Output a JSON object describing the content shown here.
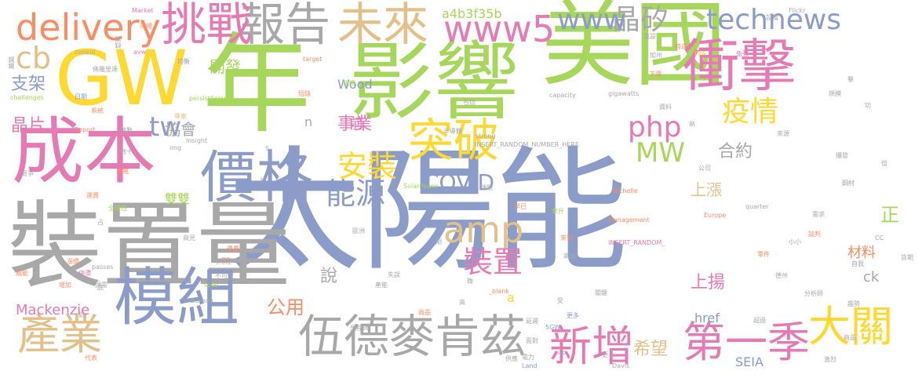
{
  "palette": {
    "gray": "#a8a8a8",
    "blue": "#8a9cc7",
    "green": "#a6d65a",
    "pink": "#e67ab4",
    "orange": "#fb8c64",
    "yellow": "#ffd92f",
    "tan": "#e2c08a"
  },
  "words": [
    "太陽能",
    "美國",
    "年",
    "裝置量",
    "影響",
    "GW",
    "成本",
    "衝擊",
    "模組",
    "價格",
    "伍德麥肯茲",
    "報告",
    "挑戰",
    "突破",
    "未來",
    "delivery",
    "www5",
    "產業",
    "第一季",
    "新增",
    "大關",
    "晶矽",
    "technews",
    "www",
    "能源",
    "amp",
    "php",
    "疫情",
    "MW",
    "安裝",
    "裝置",
    "COVID",
    "事業",
    "cb",
    "tw",
    "開發",
    "支架",
    "晶片",
    "協會",
    "上漲",
    "合約",
    "說",
    "公用",
    "希望",
    "上揚",
    "href",
    "ck",
    "正",
    "材料",
    "Mackenzie",
    "SEIA",
    "a4b3f35b",
    "Wood",
    "雙雙",
    "前",
    "n",
    "a",
    "Market",
    "Flickr",
    "zoneid",
    "avw",
    "target",
    "PPA",
    "persistSolar",
    "gigawatts",
    "capacity",
    "INSERT_RANDOM_NUMBER_HERE",
    "Insight",
    "img",
    "Report",
    "strong",
    "SolarPower",
    "Michelle",
    "Management",
    "Europe",
    "quarter",
    "INSERT_RANDOM_",
    "_blank",
    "Davis",
    "Land",
    "5GW",
    "src",
    "passes",
    "challenges",
    "Bureau",
    "solar",
    "Q2",
    "CC",
    "U",
    "S",
    "緊缺",
    "鋼鐵",
    "佛羅里達",
    "均衡",
    "扭轉",
    "短缺",
    "日期",
    "系統",
    "總數",
    "數十",
    "競爭",
    "放寬",
    "漲價",
    "停滯",
    "增加",
    "風能",
    "供需",
    "延遲",
    "高出",
    "來到",
    "分析師",
    "趨勢",
    "可用性",
    "不可沒",
    "遭費",
    "運費",
    "全球性",
    "商品",
    "里程碑",
    "代表",
    "失誤",
    "歐洲",
    "產能",
    "供應",
    "電力",
    "面對",
    "商品",
    "激烈",
    "超過",
    "談判",
    "鋼材",
    "德州",
    "零件",
    "自我",
    "貨期",
    "加州",
    "設備",
    "兔強",
    "首週",
    "重設",
    "資料",
    "下滑",
    "擊",
    "規模",
    "功",
    "倍",
    "爆發",
    "來源",
    "公司",
    "熱",
    "課題",
    "早已",
    "需求",
    "微",
    "高",
    "期",
    "受",
    "更多",
    "更",
    "關鍵",
    "包括",
    "半導體",
    "小小",
    "專案",
    "樂升",
    "市場",
    "商見",
    "底",
    "鋁",
    "占"
  ]
}
